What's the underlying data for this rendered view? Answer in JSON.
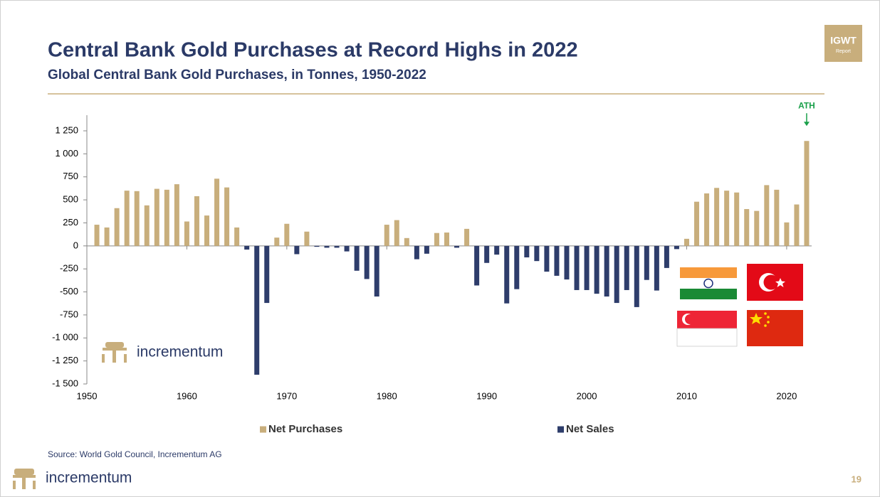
{
  "chart_data": {
    "type": "bar",
    "title": "Central Bank Gold Purchases at Record Highs in 2022",
    "subtitle": "Global Central Bank Gold Purchases, in Tonnes, 1950-2022",
    "annotation": "ATH",
    "x": [
      1951,
      1952,
      1953,
      1954,
      1955,
      1956,
      1957,
      1958,
      1959,
      1960,
      1961,
      1962,
      1963,
      1964,
      1965,
      1966,
      1967,
      1968,
      1969,
      1970,
      1971,
      1972,
      1973,
      1974,
      1975,
      1976,
      1977,
      1978,
      1979,
      1980,
      1981,
      1982,
      1983,
      1984,
      1985,
      1986,
      1987,
      1988,
      1989,
      1990,
      1991,
      1992,
      1993,
      1994,
      1995,
      1996,
      1997,
      1998,
      1999,
      2000,
      2001,
      2002,
      2003,
      2004,
      2005,
      2006,
      2007,
      2008,
      2009,
      2010,
      2011,
      2012,
      2013,
      2014,
      2015,
      2016,
      2017,
      2018,
      2019,
      2020,
      2021,
      2022
    ],
    "series": [
      {
        "name": "Net Purchases",
        "color": "#c8ae7c",
        "values": [
          230,
          200,
          410,
          600,
          595,
          440,
          620,
          610,
          670,
          265,
          540,
          330,
          730,
          635,
          200,
          null,
          null,
          null,
          90,
          240,
          null,
          155,
          null,
          null,
          null,
          null,
          null,
          null,
          null,
          230,
          280,
          85,
          null,
          null,
          140,
          145,
          null,
          185,
          null,
          null,
          null,
          null,
          null,
          null,
          null,
          null,
          null,
          null,
          null,
          null,
          null,
          null,
          null,
          null,
          null,
          null,
          null,
          null,
          null,
          77,
          480,
          570,
          630,
          600,
          580,
          400,
          380,
          660,
          610,
          255,
          450,
          1140
        ]
      },
      {
        "name": "Net Sales",
        "color": "#2e3d6b",
        "values": [
          null,
          null,
          null,
          null,
          null,
          null,
          null,
          null,
          null,
          null,
          null,
          null,
          null,
          null,
          null,
          -40,
          -1400,
          -620,
          null,
          null,
          -90,
          null,
          -10,
          -20,
          -20,
          -60,
          -270,
          -360,
          -550,
          null,
          null,
          null,
          -145,
          -85,
          null,
          null,
          -20,
          null,
          -430,
          -185,
          -95,
          -625,
          -470,
          -125,
          -165,
          -280,
          -325,
          -365,
          -480,
          -480,
          -520,
          -550,
          -620,
          -480,
          -665,
          -370,
          -485,
          -240,
          -35,
          null,
          null,
          null,
          null,
          null,
          null,
          null,
          null,
          null,
          null,
          null,
          null,
          null
        ]
      }
    ],
    "xlim": [
      1950,
      2022.5
    ],
    "xticks": [
      1950,
      1960,
      1970,
      1980,
      1990,
      2000,
      2010,
      2020
    ],
    "ylim": [
      -1500,
      1420
    ],
    "yticks": [
      {
        "value": -1500,
        "label": "-1 500"
      },
      {
        "value": -1250,
        "label": "-1 250"
      },
      {
        "value": -1000,
        "label": "-1 000"
      },
      -750,
      -500,
      -250,
      0,
      250,
      500,
      750,
      {
        "value": 1000,
        "label": "1 000"
      },
      {
        "value": 1250,
        "label": "1 250"
      }
    ],
    "legend": "bottom"
  },
  "logo": {
    "title": "IGWT",
    "subtitle": "Report"
  },
  "brand": "incrementum",
  "source": "Source: World Gold Council, Incrementum AG",
  "page_number": 19
}
